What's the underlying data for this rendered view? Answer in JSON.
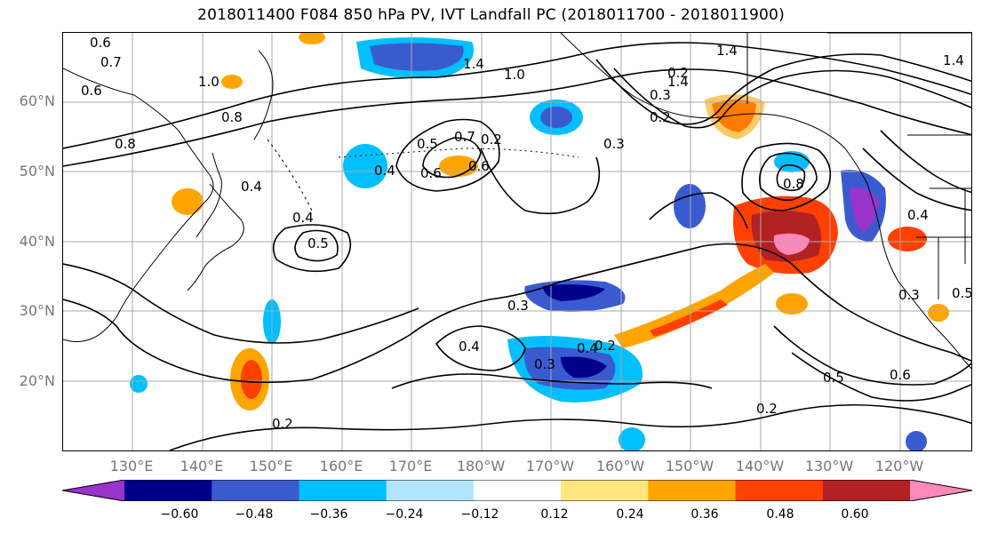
{
  "title": "2018011400 F084 850 hPa PV, IVT Landfall PC (2018011700 - 2018011900)",
  "lat_labels": [
    "60°N",
    "50°N",
    "40°N",
    "30°N",
    "20°N"
  ],
  "lon_labels": [
    "130°E",
    "140°E",
    "150°E",
    "160°E",
    "170°E",
    "180°W",
    "170°W",
    "160°W",
    "150°W",
    "140°W",
    "130°W",
    "120°W"
  ],
  "contour_labels": [
    "0.6",
    "0.7",
    "0.6",
    "1.0",
    "0.8",
    "0.8",
    "0.4",
    "0.6",
    "0.5",
    "0.6",
    "0.4",
    "0.5",
    "0.4",
    "0.4",
    "0.3",
    "0.4",
    "0.3",
    "0.2",
    "0.2",
    "1.4",
    "1.4",
    "1.4",
    "1.0",
    "0.3",
    "0.3",
    "0.8",
    "0.4",
    "0.3",
    "0.5",
    "0.5",
    "0.6",
    "0.2",
    "0.2",
    "0.7",
    "0.2",
    "1.4",
    "0.2"
  ],
  "colorbar": {
    "ticks": [
      "−0.60",
      "−0.48",
      "−0.36",
      "−0.24",
      "−0.12",
      "0.12",
      "0.24",
      "0.36",
      "0.48",
      "0.60"
    ],
    "colors": [
      "#9933cc",
      "#00008b",
      "#3a5bd0",
      "#00bfff",
      "#b3e5ff",
      "#ffffff",
      "#ffe680",
      "#ffa500",
      "#ff4000",
      "#b22222",
      "#ff88bb"
    ],
    "under_color": "#9933cc",
    "over_color": "#ff88bb"
  },
  "colors": {
    "coast": "#000000",
    "grid": "#aaaaaa",
    "axis_label": "#777777"
  }
}
